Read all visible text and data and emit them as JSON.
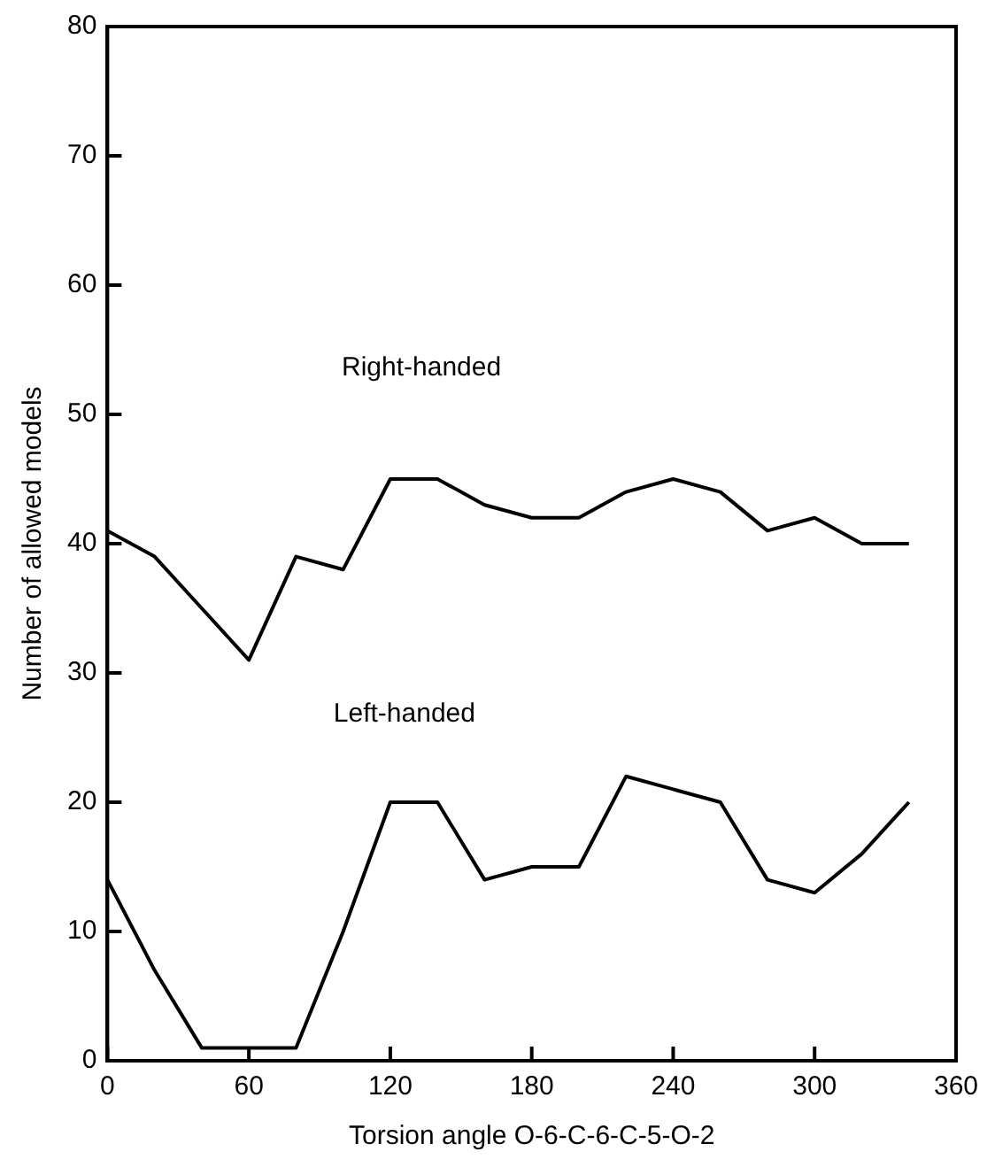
{
  "chart_data": {
    "type": "line",
    "xlabel": "Torsion angle O-6-C-6-C-5-O-2",
    "ylabel": "Number of allowed models",
    "x": [
      0,
      20,
      40,
      60,
      80,
      100,
      120,
      140,
      160,
      180,
      200,
      220,
      240,
      260,
      280,
      300,
      320,
      340
    ],
    "series": [
      {
        "color": "#000000",
        "values": [
          41,
          39,
          35,
          31,
          39,
          38,
          45,
          45,
          43,
          42,
          42,
          44,
          45,
          44,
          41,
          42,
          40,
          40
        ]
      },
      {
        "color": "#000000",
        "values": [
          14,
          7,
          1,
          1,
          1,
          10,
          20,
          20,
          14,
          15,
          15,
          22,
          21,
          20,
          14,
          13,
          16,
          20
        ]
      }
    ],
    "xlim": [
      0,
      360
    ],
    "xticks": [
      0,
      60,
      120,
      180,
      240,
      300,
      360
    ],
    "ylim": [
      0,
      80
    ],
    "yticks": [
      0,
      10,
      20,
      30,
      40,
      50,
      60,
      70,
      80
    ],
    "annotations": [
      "Right-handed",
      "Left-handed"
    ],
    "grid": false,
    "legend": false,
    "marker": "none",
    "line_style": "solid"
  }
}
